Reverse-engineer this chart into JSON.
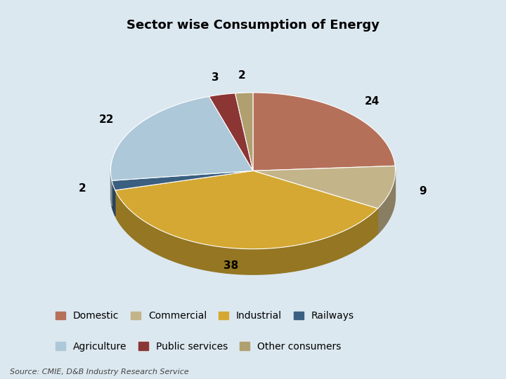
{
  "title": "Sector wise Consumption of Energy",
  "labels": [
    "Domestic",
    "Commercial",
    "Industrial",
    "Railways",
    "Agriculture",
    "Public services",
    "Other consumers"
  ],
  "values": [
    24,
    9,
    38,
    2,
    22,
    3,
    2
  ],
  "colors": [
    "#b5705a",
    "#c4b48a",
    "#d4a832",
    "#3a5f80",
    "#adc8d8",
    "#8b3535",
    "#b0a070"
  ],
  "source_text": "Source: CMIE, D&B Industry Research Service",
  "background_color": "#dce8f0",
  "title_fontsize": 13,
  "label_fontsize": 11,
  "legend_fontsize": 10,
  "startangle": 90,
  "pct_distance": 0.72
}
